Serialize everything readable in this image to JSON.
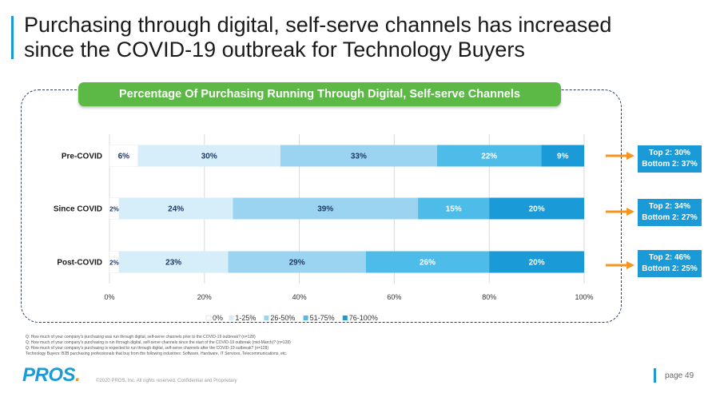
{
  "title": {
    "line1": "Purchasing through digital, self-serve channels has increased",
    "line2": "since the COVID-19 outbreak for Technology Buyers"
  },
  "banner": "Percentage Of Purchasing Running Through Digital, Self-serve Channels",
  "chart_data": {
    "type": "bar",
    "orientation": "horizontal-stacked-100",
    "categories": [
      "Pre-COVID",
      "Since COVID",
      "Post-COVID"
    ],
    "series": [
      {
        "name": "0%",
        "color": "#ffffff",
        "values": [
          6,
          2,
          2
        ],
        "labels": [
          "6%",
          "2%",
          "2%"
        ],
        "label_color": "#1f3a64"
      },
      {
        "name": "1-25%",
        "color": "#d6eef9",
        "values": [
          30,
          24,
          23
        ],
        "labels": [
          "30%",
          "24%",
          "23%"
        ],
        "label_color": "#1f3a64"
      },
      {
        "name": "26-50%",
        "color": "#9bd4f0",
        "values": [
          33,
          39,
          29
        ],
        "labels": [
          "33%",
          "39%",
          "29%"
        ],
        "label_color": "#1f3a64"
      },
      {
        "name": "51-75%",
        "color": "#4ebce8",
        "values": [
          22,
          15,
          26
        ],
        "labels": [
          "22%",
          "15%",
          "26%"
        ],
        "label_color": "#ffffff"
      },
      {
        "name": "76-100%",
        "color": "#1a9bd7",
        "values": [
          9,
          20,
          20
        ],
        "labels": [
          "9%",
          "20%",
          "20%"
        ],
        "label_color": "#ffffff"
      }
    ],
    "xlim": [
      0,
      100
    ],
    "ticks": [
      "0%",
      "20%",
      "40%",
      "60%",
      "80%",
      "100%"
    ],
    "legend_position": "bottom"
  },
  "callouts": [
    {
      "top": "Top 2: 30%",
      "bottom": "Bottom 2: 37%"
    },
    {
      "top": "Top 2: 34%",
      "bottom": "Bottom 2: 27%"
    },
    {
      "top": "Top 2: 46%",
      "bottom": "Bottom 2: 25%"
    }
  ],
  "colors": {
    "arrow": "#f7941d",
    "accent": "#1a9bd7",
    "banner": "#5cb946"
  },
  "notes": [
    "Q: How much of your company's purchasing was run through digital, self-serve channels prior to the COVID-19 outbreak? (n=128)",
    "Q: How much of your company's purchasing is run through digital, self-serve channels since the start of the COVID-19 outbreak (mid-March)? (n=128)",
    "Q: How much of your company's purchasing is expected to run through digital, self-serve channels after the COVID-19 outbreak? (n=128)",
    "Technology Buyers: B2B purchasing professionals that buy from the following industries: Software, Hardware, IT Services, Telecommunications, etc."
  ],
  "footer": {
    "logo": "PROS",
    "logo_dot": ".",
    "copyright": "©2020 PROS, Inc. All rights reserved. Confidential and Proprietary",
    "page": "page 49"
  }
}
